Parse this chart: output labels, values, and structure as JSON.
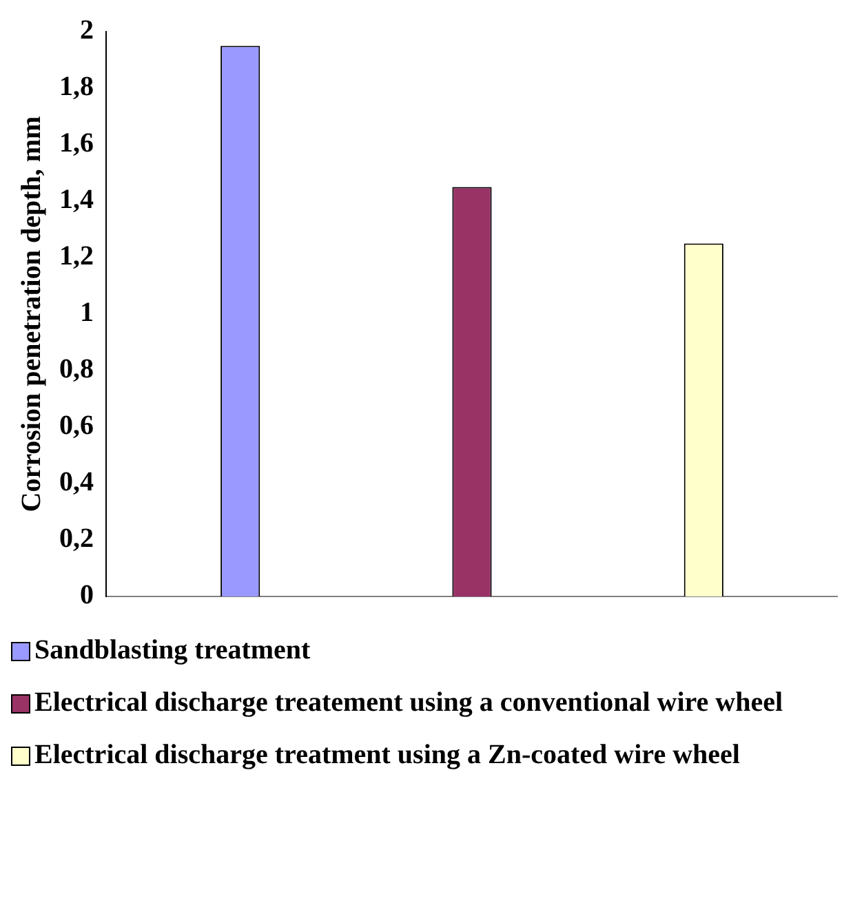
{
  "chart_data": {
    "type": "bar",
    "ylabel": "Corrosion penetration depth, mm",
    "categories": [
      null
    ],
    "series": [
      {
        "name": "Sandblasting treatment",
        "color": "#9999ff",
        "values": [
          1.95
        ]
      },
      {
        "name": "Electrical discharge treatement using a conventional wire wheel",
        "color": "#993366",
        "values": [
          1.45
        ]
      },
      {
        "name": "Electrical discharge treatment using a Zn-coated wire wheel",
        "color": "#ffffcc",
        "values": [
          1.25
        ]
      }
    ],
    "ylim": [
      0,
      2
    ],
    "yticks": [
      0,
      {
        "value": 0.2,
        "label": "0,2"
      },
      {
        "value": 0.4,
        "label": "0,4"
      },
      {
        "value": 0.6,
        "label": "0,6"
      },
      {
        "value": 0.8,
        "label": "0,8"
      },
      1,
      {
        "value": 1.2,
        "label": "1,2"
      },
      {
        "value": 1.4,
        "label": "1,4"
      },
      {
        "value": 1.6,
        "label": "1,6"
      },
      {
        "value": 1.8,
        "label": "1,8"
      },
      2
    ],
    "grid": false,
    "legend": "bottom"
  }
}
